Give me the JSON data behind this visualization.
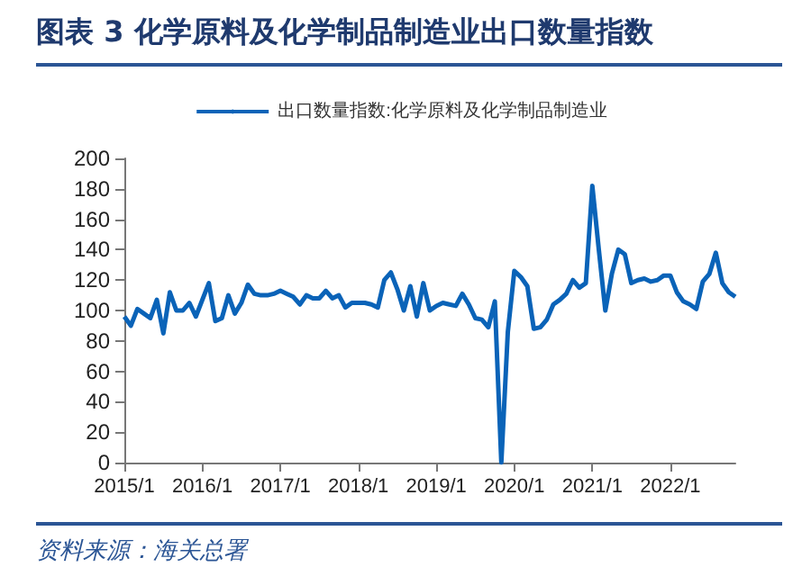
{
  "chart_data": {
    "type": "line",
    "title": "图表 3 化学原料及化学制品制造业出口数量指数",
    "annotations": [
      "资料来源：海关总署"
    ],
    "categories": [
      "2015/1",
      null,
      null,
      null,
      null,
      null,
      null,
      null,
      null,
      null,
      null,
      null,
      "2016/1",
      null,
      null,
      null,
      null,
      null,
      null,
      null,
      null,
      null,
      null,
      null,
      "2017/1",
      null,
      null,
      null,
      null,
      null,
      null,
      null,
      null,
      null,
      null,
      null,
      "2018/1",
      null,
      null,
      null,
      null,
      null,
      null,
      null,
      null,
      null,
      null,
      null,
      "2019/1",
      null,
      null,
      null,
      null,
      null,
      null,
      null,
      null,
      null,
      null,
      null,
      "2020/1",
      null,
      null,
      null,
      null,
      null,
      null,
      null,
      null,
      null,
      null,
      null,
      "2021/1",
      null,
      null,
      null,
      null,
      null,
      null,
      null,
      null,
      null,
      null,
      null,
      "2022/1",
      null,
      null,
      null,
      null,
      null,
      null,
      null,
      null,
      null,
      null
    ],
    "series": [
      {
        "name": "出口数量指数:化学原料及化学制品制造业",
        "color": "#0a63b8",
        "values": [
          96,
          90,
          101,
          98,
          95,
          107,
          85,
          112,
          100,
          100,
          105,
          96,
          107,
          118,
          93,
          95,
          110,
          98,
          105,
          117,
          111,
          110,
          110,
          111,
          113,
          111,
          109,
          104,
          110,
          108,
          108,
          113,
          108,
          110,
          102,
          105,
          105,
          105,
          104,
          102,
          120,
          125,
          114,
          100,
          116,
          96,
          118,
          100,
          103,
          105,
          104,
          103,
          111,
          104,
          95,
          94,
          89,
          106,
          0,
          86,
          126,
          122,
          116,
          88,
          89,
          94,
          104,
          107,
          111,
          120,
          115,
          118,
          182,
          140,
          100,
          124,
          140,
          137,
          118,
          120,
          121,
          119,
          120,
          123,
          123,
          112,
          106,
          104,
          101,
          119,
          124,
          138,
          118,
          112,
          109
        ]
      }
    ],
    "ylim": [
      0,
      200
    ],
    "yticks": [
      0,
      20,
      40,
      60,
      80,
      100,
      120,
      140,
      160,
      180,
      200
    ],
    "legend": "top"
  }
}
